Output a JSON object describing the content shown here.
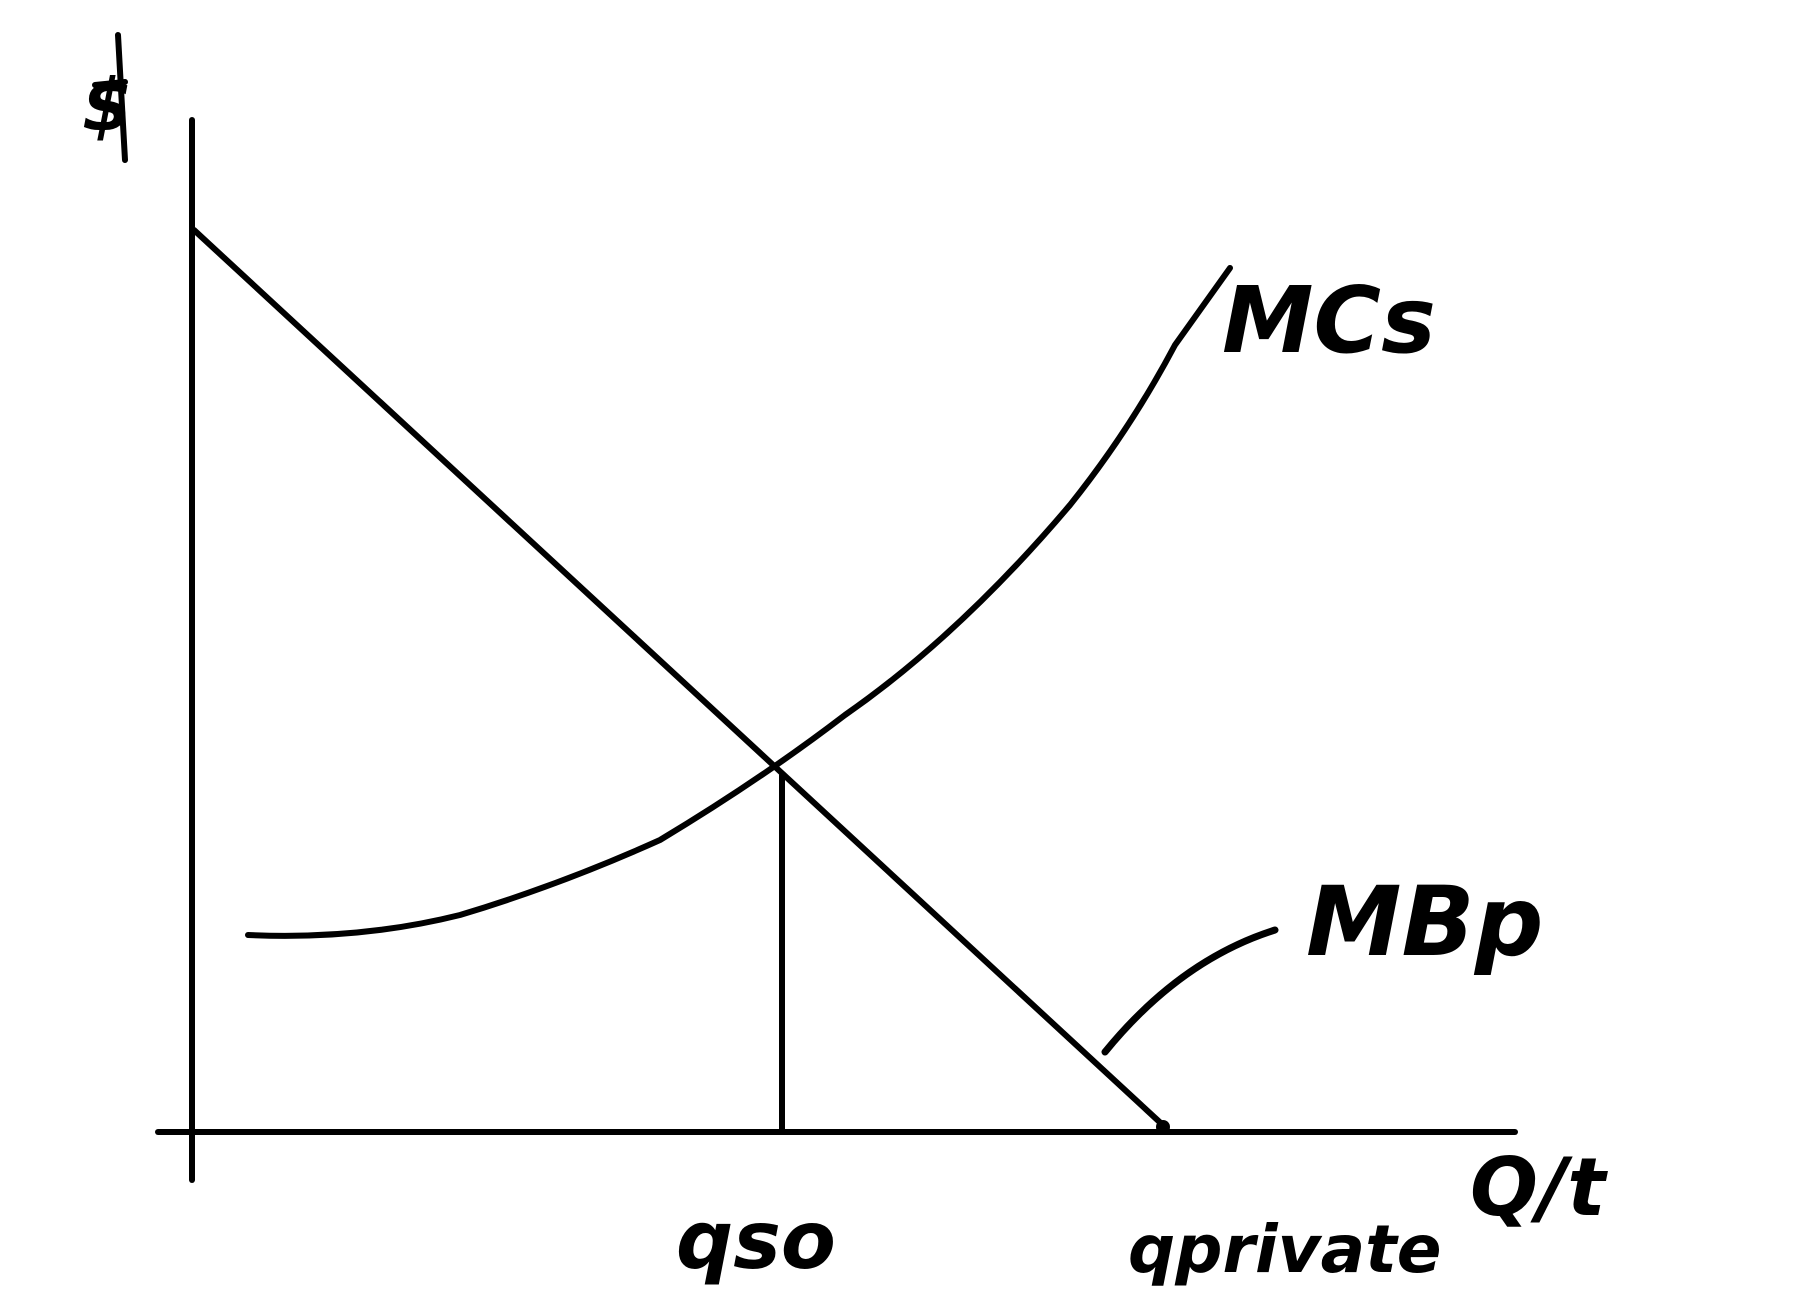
{
  "labels": {
    "y_axis": "$",
    "x_axis": "Q/t",
    "mc_curve": "MCs",
    "mb_curve": "MBp",
    "q_so": "qso",
    "q_private": "qprivate"
  },
  "colors": {
    "ink": "#000000",
    "background": "#ffffff"
  }
}
